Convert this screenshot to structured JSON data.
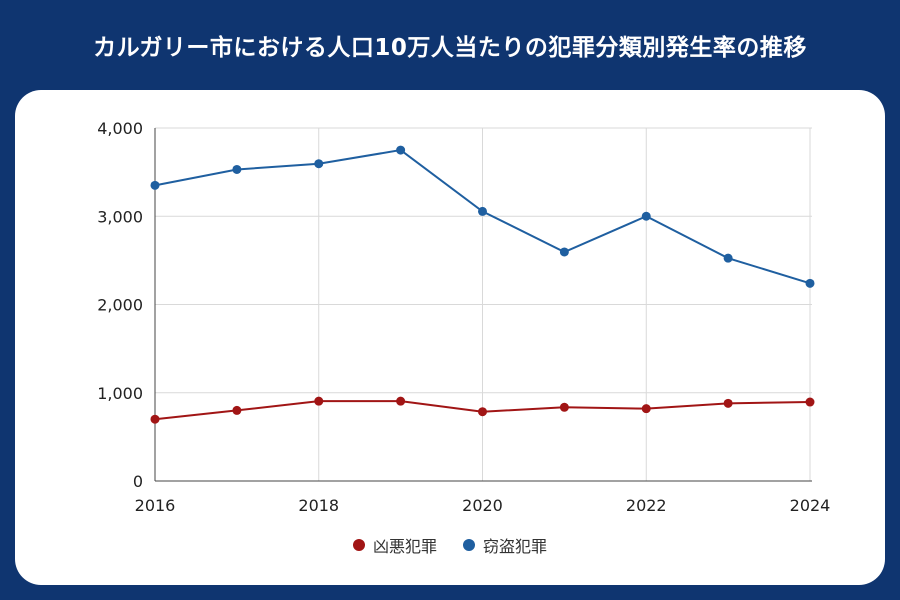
{
  "page": {
    "title": "カルガリー市における人口10万人当たりの犯罪分類別発生率の推移"
  },
  "chart_data": {
    "type": "line",
    "title": "カルガリー市における人口10万人当たりの犯罪分類別発生率の推移",
    "xlabel": "",
    "ylabel": "",
    "x": [
      2016,
      2017,
      2018,
      2019,
      2020,
      2021,
      2022,
      2023,
      2024
    ],
    "xticks": [
      "2016",
      "2018",
      "2020",
      "2022",
      "2024"
    ],
    "yticks": [
      "0",
      "1,000",
      "2,000",
      "3,000",
      "4,000"
    ],
    "ylim": [
      0,
      4000
    ],
    "grid": true,
    "legend_position": "bottom",
    "series": [
      {
        "name": "凶悪犯罪",
        "color": "#a11515",
        "values": [
          700,
          800,
          905,
          905,
          785,
          835,
          820,
          880,
          895
        ]
      },
      {
        "name": "窃盗犯罪",
        "color": "#1f5fa0",
        "values": [
          3350,
          3530,
          3595,
          3750,
          3055,
          2595,
          3000,
          2525,
          2240
        ]
      }
    ]
  }
}
